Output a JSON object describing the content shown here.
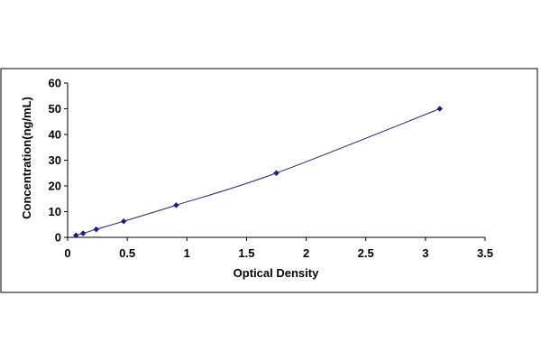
{
  "chart_data": {
    "type": "scatter",
    "title": "",
    "xlabel": "Optical Density",
    "ylabel": "Concentration(ng/mL)",
    "xlim": [
      0,
      3.5
    ],
    "ylim": [
      0,
      60
    ],
    "x_ticks": [
      "0",
      "0.5",
      "1",
      "1.5",
      "2",
      "2.5",
      "3",
      "3.5"
    ],
    "y_ticks": [
      "0",
      "10",
      "20",
      "30",
      "40",
      "50",
      "60"
    ],
    "grid": false,
    "legend": "none",
    "trendline": "smooth curve through points",
    "series": [
      {
        "x": [
          0.07,
          0.13,
          0.24,
          0.47,
          0.91,
          1.75,
          3.12
        ],
        "y": [
          0.78,
          1.56,
          3.13,
          6.25,
          12.5,
          25,
          50
        ]
      }
    ],
    "colors": {
      "marker": "#1f1f7a",
      "line": "#1f1f7a",
      "axis": "#000000",
      "frame": "#000000"
    }
  }
}
